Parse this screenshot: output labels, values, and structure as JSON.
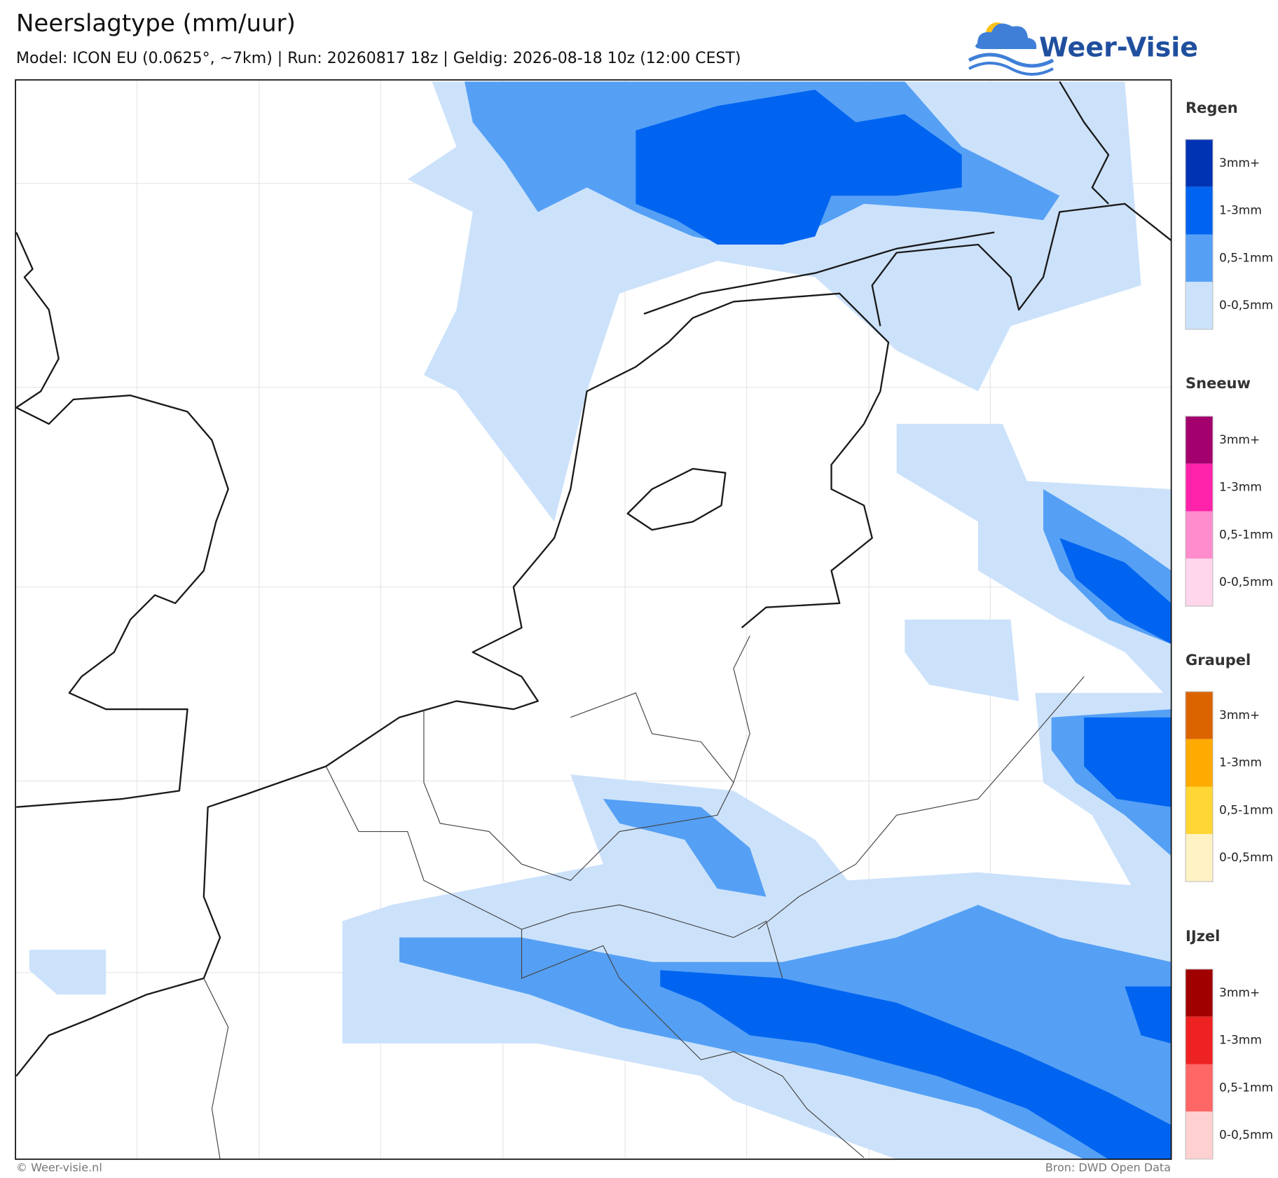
{
  "header": {
    "title": "Neerslagtype (mm/uur)",
    "subtitle": "Model: ICON EU (0.0625°, ~7km)  |  Run: 20260817 18z  |  Geldig: 2026-08-18 10z (12:00 CEST)",
    "logo": "Weer-Visie"
  },
  "legend": {
    "sections": [
      {
        "title": "Regen",
        "items": [
          {
            "label": "3mm+",
            "color": "#0032b4"
          },
          {
            "label": "1-3mm",
            "color": "#0064f0"
          },
          {
            "label": "0,5-1mm",
            "color": "#55a0f5"
          },
          {
            "label": "0-0,5mm",
            "color": "#cce2fb"
          }
        ]
      },
      {
        "title": "Sneeuw",
        "items": [
          {
            "label": "3mm+",
            "color": "#a3006e"
          },
          {
            "label": "1-3mm",
            "color": "#ff22aa"
          },
          {
            "label": "0,5-1mm",
            "color": "#ff8ccc"
          },
          {
            "label": "0-0,5mm",
            "color": "#ffd6ec"
          }
        ]
      },
      {
        "title": "Graupel",
        "items": [
          {
            "label": "3mm+",
            "color": "#dc6400"
          },
          {
            "label": "1-3mm",
            "color": "#ffaa00"
          },
          {
            "label": "0,5-1mm",
            "color": "#ffd633"
          },
          {
            "label": "0-0,5mm",
            "color": "#fff2c4"
          }
        ]
      },
      {
        "title": "IJzel",
        "items": [
          {
            "label": "3mm+",
            "color": "#a00000"
          },
          {
            "label": "1-3mm",
            "color": "#ee2222"
          },
          {
            "label": "0,5-1mm",
            "color": "#ff6666"
          },
          {
            "label": "0-0,5mm",
            "color": "#ffd0d0"
          }
        ]
      }
    ]
  },
  "footer": {
    "left": "© Weer-visie.nl",
    "right": "Bron: DWD Open Data"
  }
}
